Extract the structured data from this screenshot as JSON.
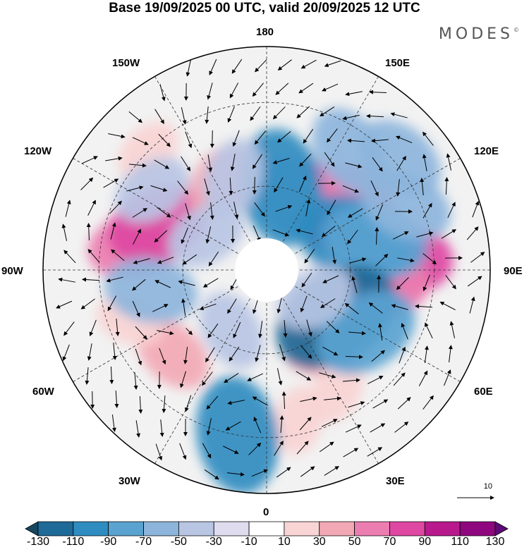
{
  "title": "Base 19/09/2025 00 UTC, valid 20/09/2025 12 UTC",
  "brand": {
    "name": "MODES",
    "mark": "©"
  },
  "map_labels": {
    "lon_180": "180",
    "lon_150W": "150W",
    "lon_150E": "150E",
    "lon_120W": "120W",
    "lon_120E": "120E",
    "lon_90W": "90W",
    "lon_90E": "90E",
    "lon_60W": "60W",
    "lon_60E": "60E",
    "lon_30W": "30W",
    "lon_30E": "30E",
    "lon_0": "0"
  },
  "colorbar": {
    "colors": [
      "#17465f",
      "#1e6a98",
      "#2f8cc0",
      "#5aa3d1",
      "#8db5dc",
      "#b8c6e4",
      "#dedcee",
      "#ffffff",
      "#f8d4d4",
      "#f2a9b5",
      "#ec7db0",
      "#de48a2",
      "#b81a8d",
      "#8f077f",
      "#5e0a75"
    ],
    "tick_labels": [
      "-130",
      "-110",
      "-90",
      "-70",
      "-50",
      "-30",
      "-10",
      "10",
      "30",
      "50",
      "70",
      "90",
      "110",
      "130"
    ]
  },
  "vector_scale": {
    "label": "10"
  },
  "anomalies": [
    {
      "lat": 60,
      "lon": 138,
      "cat": 11
    },
    {
      "lat": 50,
      "lon": 128,
      "cat": 10
    },
    {
      "lat": 62,
      "lon": 165,
      "cat": 5
    },
    {
      "lat": 42,
      "lon": 95,
      "cat": 11
    },
    {
      "lat": 48,
      "lon": 82,
      "cat": 10
    },
    {
      "lat": 60,
      "lon": 38,
      "cat": 9
    },
    {
      "lat": 55,
      "lon": 43,
      "cat": 9
    },
    {
      "lat": 40,
      "lon": 30,
      "cat": 8
    },
    {
      "lat": 35,
      "lon": 12,
      "cat": 8
    },
    {
      "lat": 45,
      "lon": -48,
      "cat": 9
    },
    {
      "lat": 38,
      "lon": -70,
      "cat": 8
    },
    {
      "lat": 42,
      "lon": -100,
      "cat": 10
    },
    {
      "lat": 48,
      "lon": -113,
      "cat": 11
    },
    {
      "lat": 55,
      "lon": -152,
      "cat": 9
    },
    {
      "lat": 30,
      "lon": -135,
      "cat": 8
    },
    {
      "lat": 60,
      "lon": 170,
      "cat": 2
    },
    {
      "lat": 57,
      "lon": 110,
      "cat": 2
    },
    {
      "lat": 50,
      "lon": 105,
      "cat": 3
    },
    {
      "lat": 35,
      "lon": 115,
      "cat": 4
    },
    {
      "lat": 60,
      "lon": 56,
      "cat": 1
    },
    {
      "lat": 48,
      "lon": 58,
      "cat": 3
    },
    {
      "lat": 30,
      "lon": -10,
      "cat": 2
    },
    {
      "lat": 48,
      "lon": -80,
      "cat": 4
    },
    {
      "lat": 55,
      "lon": -160,
      "cat": 5
    },
    {
      "lat": 65,
      "lon": -120,
      "cat": 5
    },
    {
      "lat": 40,
      "lon": -125,
      "cat": 5
    },
    {
      "lat": 28,
      "lon": 130,
      "cat": 4
    },
    {
      "lat": 38,
      "lon": 145,
      "cat": 4
    },
    {
      "lat": 70,
      "lon": 60,
      "cat": 5
    },
    {
      "lat": 65,
      "lon": -30,
      "cat": 5
    }
  ]
}
